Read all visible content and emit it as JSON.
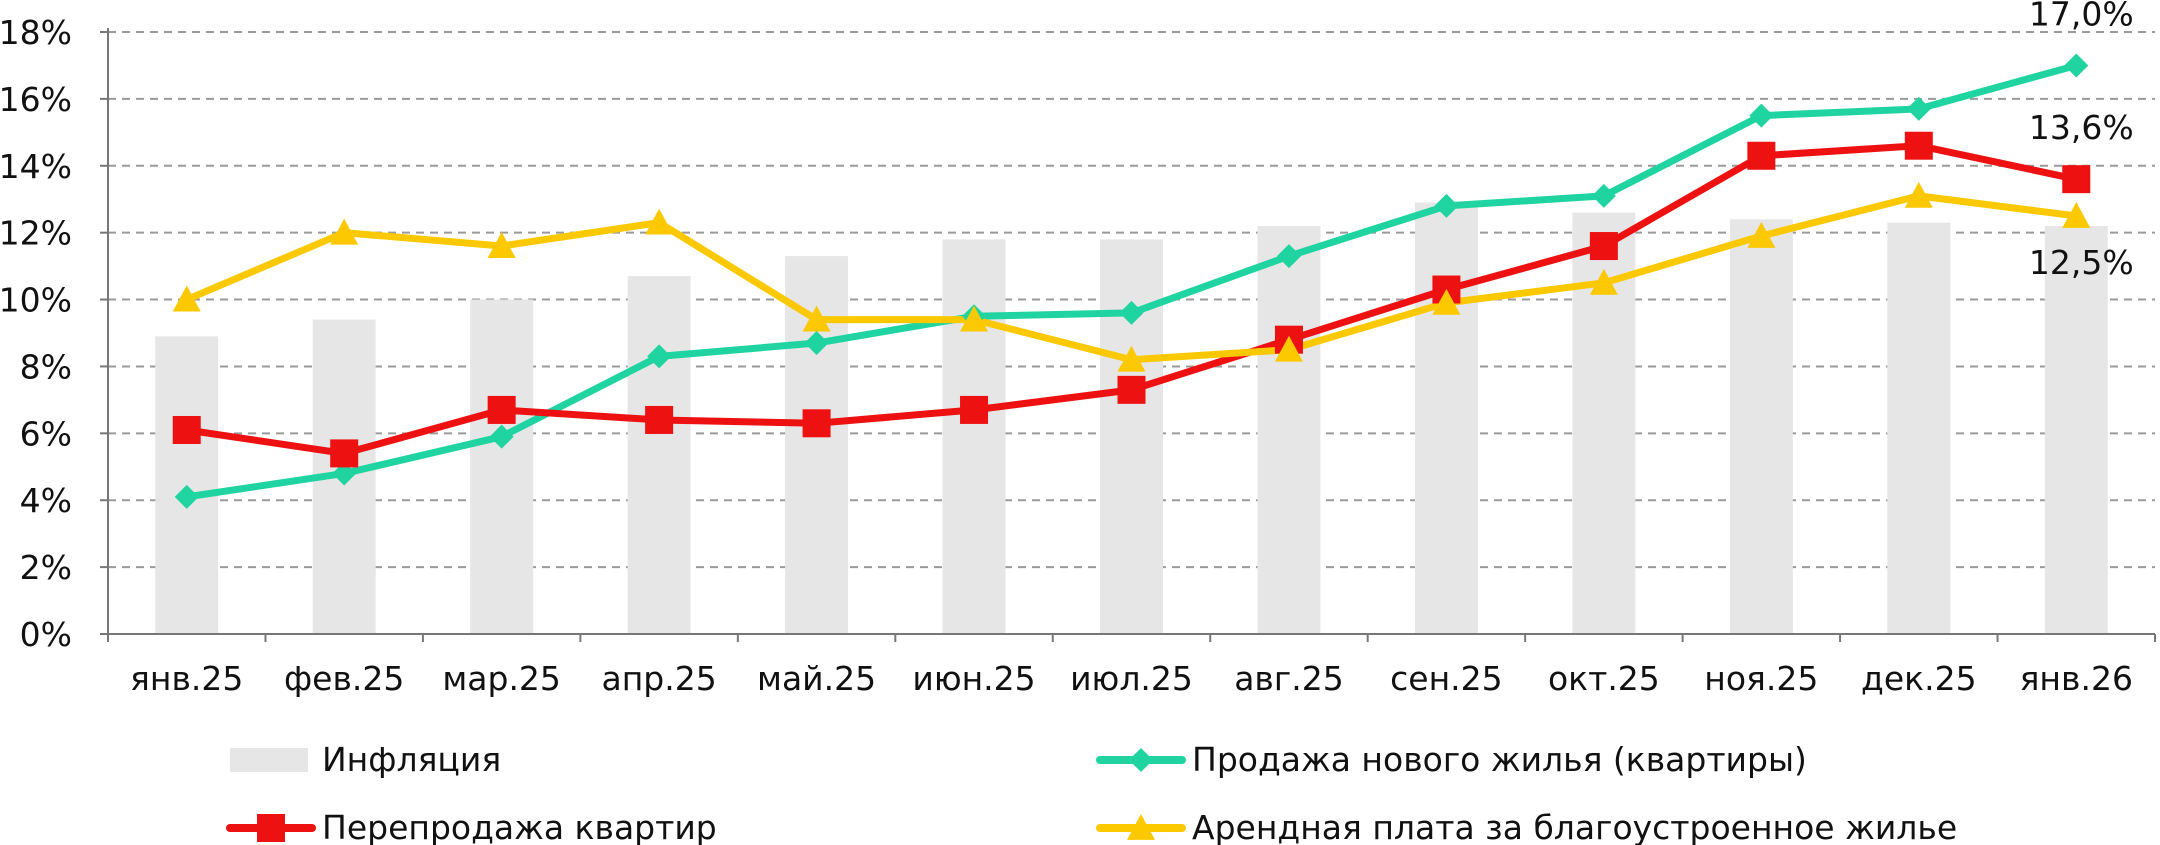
{
  "chart_data": {
    "type": "bar+line",
    "categories": [
      "янв.25",
      "фев.25",
      "мар.25",
      "апр.25",
      "май.25",
      "июн.25",
      "июл.25",
      "авг.25",
      "сен.25",
      "окт.25",
      "ноя.25",
      "дек.25",
      "янв.26"
    ],
    "ylim": [
      0,
      18
    ],
    "y_ticks": [
      {
        "value": 0,
        "label": "0%"
      },
      {
        "value": 2,
        "label": "2%"
      },
      {
        "value": 4,
        "label": "4%"
      },
      {
        "value": 6,
        "label": "6%"
      },
      {
        "value": 8,
        "label": "8%"
      },
      {
        "value": 10,
        "label": "10%"
      },
      {
        "value": 12,
        "label": "12%"
      },
      {
        "value": 14,
        "label": "14%"
      },
      {
        "value": 16,
        "label": "16%"
      },
      {
        "value": 18,
        "label": "18%"
      }
    ],
    "grid": "horizontal dashed",
    "legend_position": "bottom",
    "series": [
      {
        "name": "Инфляция",
        "type": "bar",
        "color": "#e6e6e6",
        "values": [
          8.9,
          9.4,
          10.0,
          10.7,
          11.3,
          11.8,
          11.8,
          12.2,
          12.9,
          12.6,
          12.4,
          12.3,
          12.2
        ]
      },
      {
        "name": "Продажа нового жилья (квартиры)",
        "type": "line",
        "marker": "diamond",
        "color": "#1fd4a0",
        "values": [
          4.1,
          4.8,
          5.9,
          8.3,
          8.7,
          9.5,
          9.6,
          11.3,
          12.8,
          13.1,
          15.5,
          15.7,
          17.0
        ]
      },
      {
        "name": "Перепродажа квартир",
        "type": "line",
        "marker": "square",
        "color": "#ee1111",
        "values": [
          6.1,
          5.4,
          6.7,
          6.4,
          6.3,
          6.7,
          7.3,
          8.8,
          10.3,
          11.6,
          14.3,
          14.6,
          13.6
        ]
      },
      {
        "name": "Арендная плата за благоустроенное жилье",
        "type": "line",
        "marker": "triangle",
        "color": "#fcc800",
        "values": [
          10.0,
          12.0,
          11.6,
          12.3,
          9.4,
          9.4,
          8.2,
          8.5,
          9.9,
          10.5,
          11.9,
          13.1,
          12.5
        ]
      }
    ],
    "data_labels": [
      {
        "series": "Продажа нового жилья (квартиры)",
        "category": "янв.26",
        "text": "17,0%"
      },
      {
        "series": "Перепродажа квартир",
        "category": "янв.26",
        "text": "13,6%"
      },
      {
        "series": "Арендная плата за благоустроенное жилье",
        "category": "янв.26",
        "text": "12,5%"
      }
    ]
  }
}
